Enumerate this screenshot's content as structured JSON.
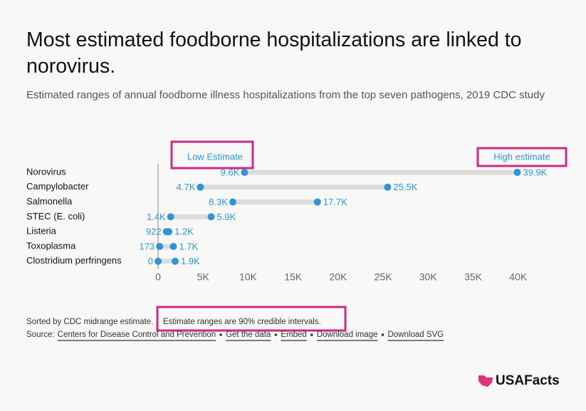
{
  "chart_data": {
    "type": "dumbbell",
    "title": "Most estimated foodborne hospitalizations are linked to norovirus.",
    "subtitle": "Estimated ranges of annual foodborne illness hospitalizations from the top seven pathogens, 2019 CDC study",
    "categories": [
      "Norovirus",
      "Campylobacter",
      "Salmonella",
      "STEC (E. coli)",
      "Listeria",
      "Toxoplasma",
      "Clostridium perfringens"
    ],
    "series": [
      {
        "name": "Low Estimate",
        "color": "#2f95d4",
        "values": [
          9600,
          4700,
          8300,
          1400,
          922,
          173,
          0
        ],
        "value_labels": [
          "9.6K",
          "4.7K",
          "8.3K",
          "1.4K",
          "922",
          "173",
          "0"
        ]
      },
      {
        "name": "High estimate",
        "color": "#2f95d4",
        "values": [
          39900,
          25500,
          17700,
          5900,
          1200,
          1700,
          1900
        ],
        "value_labels": [
          "39.9K",
          "25.5K",
          "17.7K",
          "5.9K",
          "1.2K",
          "1.7K",
          "1.9K"
        ]
      }
    ],
    "xlim": [
      0,
      43500
    ],
    "xticks": [
      0,
      {
        "value": 5000,
        "label": "5K"
      },
      {
        "value": 10000,
        "label": "10K"
      },
      {
        "value": 15000,
        "label": "15K"
      },
      {
        "value": 20000,
        "label": "20K"
      },
      {
        "value": 25000,
        "label": "25K"
      },
      {
        "value": 30000,
        "label": "30K"
      },
      {
        "value": 35000,
        "label": "35K"
      },
      {
        "value": 40000,
        "label": "40K"
      }
    ],
    "note": "Sorted by CDC midrange estimate.",
    "annotation": "Estimate ranges are 90% credible intervals.",
    "source_label": "Source:",
    "source_links": [
      "Centers for Disease Control and Prevention",
      "Get the data",
      "Embed",
      "Download image",
      "Download SVG"
    ],
    "logo": "USAFacts"
  }
}
